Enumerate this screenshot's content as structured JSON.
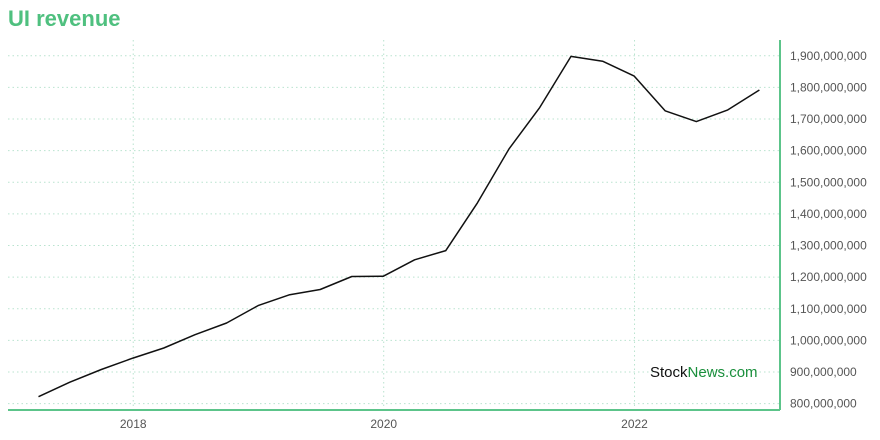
{
  "title": "UI revenue",
  "watermark": {
    "part1": "Stock",
    "part2": "News.com"
  },
  "colors": {
    "title": "#4fc07f",
    "axis": "#5cc48a",
    "grid": "#b9e3cf",
    "line": "#111111",
    "watermark_accent": "#1a8f3c"
  },
  "chart_data": {
    "type": "line",
    "title": "UI revenue",
    "xlabel": "",
    "ylabel": "",
    "x_ticks": [
      "2018",
      "2020",
      "2022"
    ],
    "y_ticks": [
      800000000,
      900000000,
      1000000000,
      1100000000,
      1200000000,
      1300000000,
      1400000000,
      1500000000,
      1600000000,
      1700000000,
      1800000000,
      1900000000
    ],
    "y_tick_labels": [
      "800,000,000",
      "900,000,000",
      "1,000,000,000",
      "1,100,000,000",
      "1,200,000,000",
      "1,300,000,000",
      "1,400,000,000",
      "1,500,000,000",
      "1,600,000,000",
      "1,700,000,000",
      "1,800,000,000",
      "1,900,000,000"
    ],
    "xlim": [
      "2017-01",
      "2023-03"
    ],
    "ylim": [
      780000000,
      1950000000
    ],
    "grid": true,
    "y_axis_side": "right",
    "series": [
      {
        "x": [
          "2017-03-31",
          "2017-06-30",
          "2017-09-30",
          "2017-12-31",
          "2018-03-31",
          "2018-06-30",
          "2018-09-30",
          "2018-12-31",
          "2019-03-31",
          "2019-06-30",
          "2019-09-30",
          "2019-12-31",
          "2020-03-31",
          "2020-06-30",
          "2020-09-30",
          "2020-12-31",
          "2021-03-31",
          "2021-06-30",
          "2021-09-30",
          "2021-12-31",
          "2022-03-31",
          "2022-06-30",
          "2022-09-30",
          "2022-12-31"
        ],
        "values": [
          822000000,
          868000000,
          908000000,
          944000000,
          976000000,
          1018000000,
          1055000000,
          1110000000,
          1144000000,
          1161000000,
          1202000000,
          1203000000,
          1255000000,
          1284000000,
          1435000000,
          1605000000,
          1737000000,
          1898000000,
          1883000000,
          1836000000,
          1726000000,
          1692000000,
          1729000000,
          1792000000
        ]
      }
    ]
  }
}
